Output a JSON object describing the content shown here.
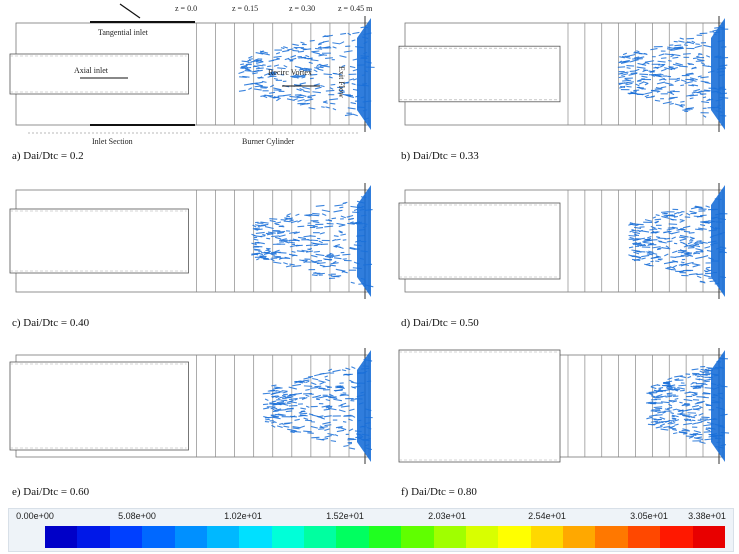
{
  "figure": {
    "panels": [
      {
        "id": "a",
        "caption": "a) Dai/Dtc = 0.2",
        "ratio": 0.2,
        "annotated": true
      },
      {
        "id": "b",
        "caption": "b) Dai/Dtc = 0.33",
        "ratio": 0.33,
        "annotated": false
      },
      {
        "id": "c",
        "caption": "c) Dai/Dtc = 0.40",
        "ratio": 0.4,
        "annotated": false
      },
      {
        "id": "d",
        "caption": "d) Dai/Dtc = 0.50",
        "ratio": 0.5,
        "annotated": false
      },
      {
        "id": "e",
        "caption": "e) Dai/Dtc = 0.60",
        "ratio": 0.6,
        "annotated": false
      },
      {
        "id": "f",
        "caption": "f) Dai/Dtc = 0.80",
        "ratio": 0.8,
        "annotated": false
      }
    ],
    "annotations": {
      "z_labels": [
        "z = 0.0",
        "z = 0.15",
        "z = 0.30",
        "z = 0.45 m"
      ],
      "tangential_inlet": "Tangential inlet",
      "axial_inlet": "Axial inlet",
      "vortex": "Recirc Vortex",
      "inlet_section": "Inlet Section",
      "burner_cylinder": "Burner Cylinder",
      "exit_label": "Exit Flow"
    },
    "colorbar": {
      "tick_labels": [
        "0.00e+00",
        "5.08e+00",
        "1.02e+01",
        "1.52e+01",
        "2.03e+01",
        "2.54e+01",
        "3.05e+01",
        "3.38e+01"
      ],
      "min": 0.0,
      "max": 33.8,
      "colors": [
        "#0000c8",
        "#0018e8",
        "#0040ff",
        "#0068ff",
        "#0090ff",
        "#00b8ff",
        "#00e0ff",
        "#00ffd8",
        "#00ffa0",
        "#00ff60",
        "#20ff20",
        "#60ff00",
        "#a0ff00",
        "#d8ff00",
        "#ffff00",
        "#ffd800",
        "#ffa800",
        "#ff7800",
        "#ff4800",
        "#ff1800",
        "#e80000"
      ]
    },
    "streamline_color": "#1a6fd8"
  }
}
